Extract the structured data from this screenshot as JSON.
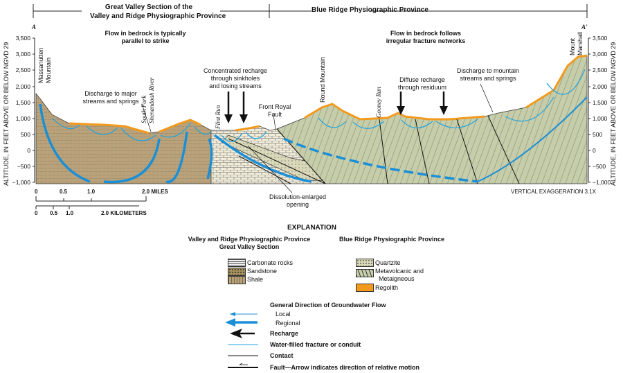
{
  "header": {
    "left_province": "Great Valley Section of the\nValley and Ridge Physiographic Province",
    "left_line1": "Great Valley Section of the",
    "left_line2": "Valley and Ridge Physiographic Province",
    "right_province": "Blue Ridge Physiographic Province"
  },
  "section": {
    "start": "A",
    "end": "A'"
  },
  "notes": {
    "left_flow_1": "Flow in bedrock is typically",
    "left_flow_2": "parallel to strike",
    "right_flow_1": "Flow in bedrock follows",
    "right_flow_2": "irregular fracture networks"
  },
  "callouts": {
    "discharge_major_1": "Discharge to major",
    "discharge_major_2": "streams and springs",
    "concentrated_1": "Concentrated recharge",
    "concentrated_2": "through sinkholes",
    "concentrated_3": "and losing streams",
    "front_royal_1": "Front Royal",
    "front_royal_2": "Fault",
    "diffuse_1": "Diffuse recharge",
    "diffuse_2": "through residuum",
    "discharge_mtn_1": "Discharge to mountain",
    "discharge_mtn_2": "streams and springs",
    "dissolution_1": "Dissolution-enlarged",
    "dissolution_2": "opening"
  },
  "places": {
    "massanutten_1": "Massanutten",
    "massanutten_2": "Mountain",
    "south_fork_1": "South Fork",
    "south_fork_2": "Shenandoah River",
    "flint_run": "Flint Run",
    "round_mountain": "Round Mountain",
    "gooney_run": "Gooney Run",
    "mount_marshall_1": "Mount",
    "mount_marshall_2": "Marshall"
  },
  "axis": {
    "label": "ALTITUDE, IN FEET ABOVE OR BELOW NGVD 29",
    "ticks": [
      "3,500",
      "3,000",
      "2,500",
      "2,000",
      "1,500",
      "1,000",
      "500",
      "0",
      "−500",
      "−1,000"
    ]
  },
  "scale": {
    "miles": [
      "0",
      "0.5",
      "1.0",
      "2.0 MILES"
    ],
    "km": [
      "0",
      "0.5",
      "1.0",
      "2.0 KILOMETERS"
    ],
    "vertical_exaggeration": "VERTICAL EXAGGERATION 3.1X"
  },
  "legend": {
    "title": "EXPLANATION",
    "left_heading_1": "Valley and Ridge Physiographic Province",
    "left_heading_2": "Great Valley Section",
    "right_heading": "Blue Ridge Physiographic Province",
    "left_units": [
      "Carbonate rocks",
      "Sandstone",
      "Shale"
    ],
    "right_units": [
      "Quartzite",
      "Metavolcanic and",
      "Metaigneous",
      "Regolith"
    ],
    "flow_heading": "General Direction of Groundwater Flow",
    "local": "Local",
    "regional": "Regional",
    "recharge": "Recharge",
    "fracture": "Water-filled fracture or conduit",
    "contact": "Contact",
    "fault": "Fault—Arrow indicates direction of relative motion"
  },
  "colors": {
    "shale": "#b9a27a",
    "carbonate": "#f1ecd9",
    "metavolcanic": "#c6cdaa",
    "regolith": "#f29a1e",
    "water": "#1fa3e0",
    "regional_flow": "#1b8fd6"
  }
}
